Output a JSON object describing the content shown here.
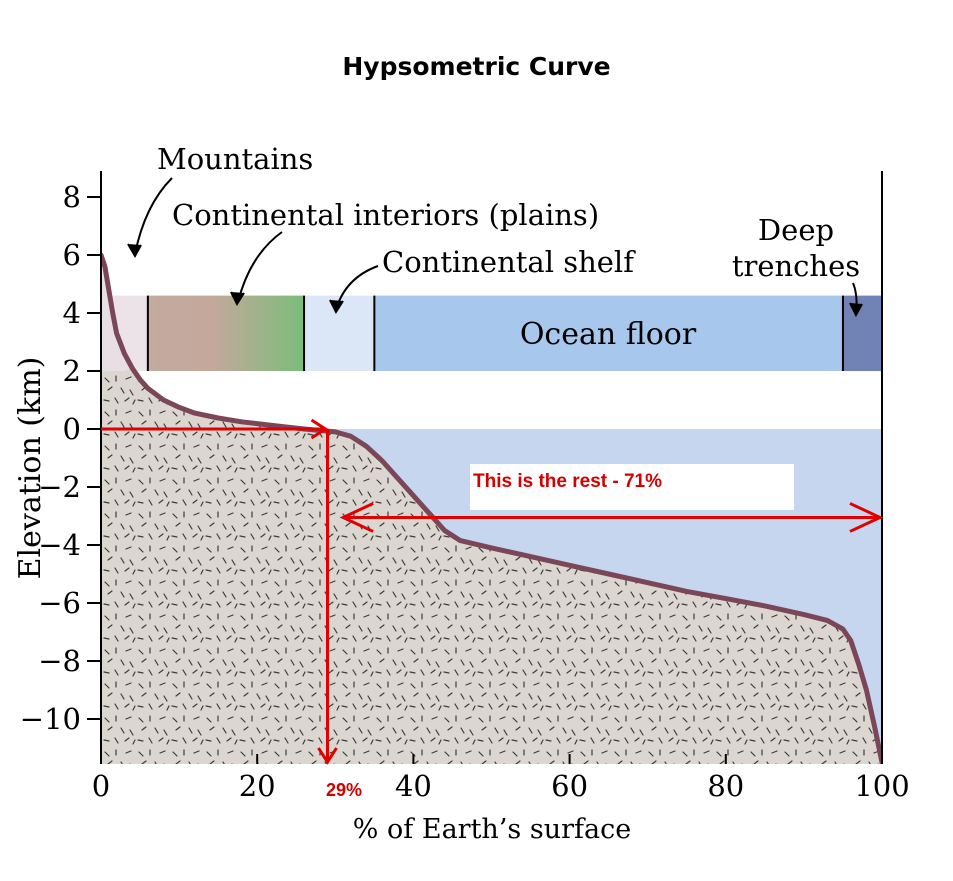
{
  "page_title": "Hypsometric Curve",
  "chart_data": {
    "type": "area",
    "title": "Hypsometric Curve",
    "xlabel": "% of Earth’s surface",
    "ylabel": "Elevation (km)",
    "xlim": [
      0,
      100
    ],
    "ylim": [
      -11.5,
      9
    ],
    "xticks": [
      0,
      20,
      40,
      60,
      80,
      100
    ],
    "xtick_labels": [
      "0",
      "20",
      "40",
      "60",
      "80",
      "100"
    ],
    "yticks": [
      8,
      6,
      4,
      2,
      0,
      -2,
      -4,
      -6,
      -8,
      -10
    ],
    "ytick_labels": [
      "8",
      "6",
      "4",
      "2",
      "0",
      "−2",
      "−4",
      "−6",
      "−8",
      "−10"
    ],
    "series": [
      {
        "x": [
          0,
          0.5,
          1,
          1.5,
          2,
          3,
          4,
          5,
          6,
          8,
          10,
          12,
          15,
          18,
          22,
          26,
          28,
          30,
          32,
          34,
          36,
          38,
          40,
          42,
          44,
          46,
          50,
          55,
          60,
          65,
          70,
          75,
          80,
          85,
          90,
          93,
          95,
          96,
          97,
          98,
          99,
          100
        ],
        "y": [
          6.0,
          5.6,
          4.8,
          4.0,
          3.3,
          2.6,
          2.1,
          1.7,
          1.4,
          1.0,
          0.75,
          0.55,
          0.38,
          0.25,
          0.12,
          0.0,
          -0.05,
          -0.1,
          -0.25,
          -0.6,
          -1.1,
          -1.7,
          -2.3,
          -2.9,
          -3.5,
          -3.85,
          -4.1,
          -4.4,
          -4.7,
          -5.0,
          -5.3,
          -5.6,
          -5.85,
          -6.1,
          -6.4,
          -6.6,
          -6.9,
          -7.3,
          -8.1,
          -9.0,
          -10.2,
          -11.5
        ]
      }
    ],
    "bands": [
      {
        "label": "Mountains",
        "from": 0,
        "to": 6,
        "color": "#ece3e8"
      },
      {
        "label": "Continental interiors (plains)",
        "from": 6,
        "to": 26,
        "color_from": "#c3ab9f",
        "color_to": "#7bbd7a"
      },
      {
        "label": "Continental shelf",
        "from": 26,
        "to": 35,
        "color": "#dbe6f7"
      },
      {
        "label": "Ocean floor",
        "from": 35,
        "to": 95,
        "color": "#a7c8ec"
      },
      {
        "label": "Deep trenches",
        "from": 95,
        "to": 100,
        "color": "#7182b5"
      }
    ],
    "annotations": [
      {
        "text": "Mountains"
      },
      {
        "text": "Continental interiors (plains)"
      },
      {
        "text": "Continental shelf"
      },
      {
        "text": "Deep"
      },
      {
        "text": "trenches"
      },
      {
        "text": "Ocean floor"
      },
      {
        "text": "This is the rest - 71%"
      },
      {
        "text": "29%"
      }
    ],
    "colors": {
      "curve": "#7a4658",
      "land_fill": "#dcd6d0",
      "ocean_fill": "#c5d6ee",
      "overlay_red": "#e00000",
      "overlay_label": "#d40000"
    },
    "marker_x": 29,
    "arrow_from_x": 31,
    "arrow_to_x": 100
  }
}
